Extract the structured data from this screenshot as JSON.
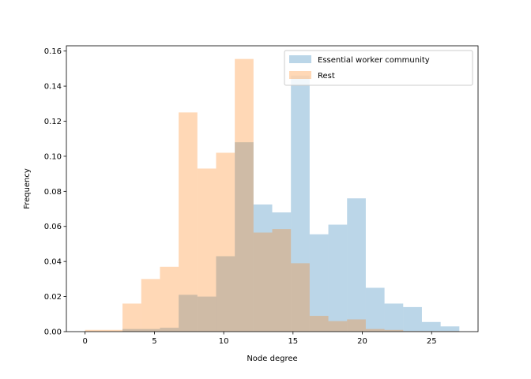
{
  "chart_data": {
    "type": "bar",
    "subtype": "overlapping-histogram",
    "xlabel": "Node degree",
    "ylabel": "Frequency",
    "xlim": [
      -1.35,
      28.35
    ],
    "ylim": [
      0,
      0.163
    ],
    "xticks": [
      0,
      5,
      10,
      15,
      20,
      25
    ],
    "yticks": [
      0.0,
      0.02,
      0.04,
      0.06,
      0.08,
      0.1,
      0.12,
      0.14,
      0.16
    ],
    "grid": false,
    "legend_position": "top-right",
    "bin_width": 1.35,
    "series": [
      {
        "name": "Essential worker community",
        "color": "#1f77b4",
        "opacity": 0.3,
        "bin_edges": [
          2.7,
          4.05,
          5.4,
          6.75,
          8.1,
          9.45,
          10.8,
          12.15,
          13.5,
          14.85,
          16.2,
          17.55,
          18.9,
          20.25,
          21.6,
          22.95,
          24.3,
          25.65,
          27.0
        ],
        "values": [
          0.0015,
          0.0015,
          0.0022,
          0.021,
          0.02,
          0.043,
          0.108,
          0.0725,
          0.068,
          0.146,
          0.0555,
          0.061,
          0.076,
          0.025,
          0.016,
          0.014,
          0.0055,
          0.003
        ]
      },
      {
        "name": "Rest",
        "color": "#ff7f0e",
        "opacity": 0.3,
        "bin_edges": [
          0.0,
          1.35,
          2.7,
          4.05,
          5.4,
          6.75,
          8.1,
          9.45,
          10.8,
          12.15,
          13.5,
          14.85,
          16.2,
          17.55,
          18.9,
          20.25,
          21.6,
          22.95,
          24.3,
          25.65,
          27.0
        ],
        "values": [
          0.001,
          0.001,
          0.016,
          0.03,
          0.037,
          0.125,
          0.093,
          0.102,
          0.1555,
          0.0565,
          0.0585,
          0.039,
          0.009,
          0.006,
          0.007,
          0.0015,
          0.001,
          0.0003,
          0.0003,
          0.0003
        ]
      }
    ]
  }
}
